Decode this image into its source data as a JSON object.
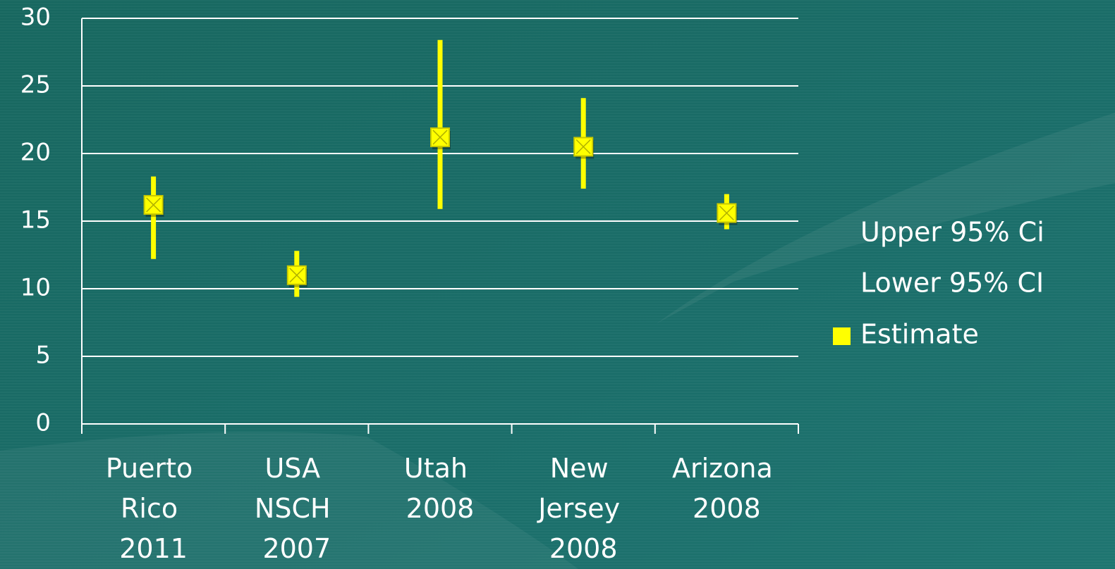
{
  "chart_data": {
    "type": "stock",
    "categories": [
      "Puerto Rico 2011",
      "USA NSCH 2007",
      "Utah 2008",
      "New Jersey 2008",
      "Arizona 2008"
    ],
    "series": [
      {
        "name": "Upper 95% Ci",
        "color": "#ffff00",
        "values": [
          18.3,
          12.8,
          28.4,
          24.1,
          17.0
        ]
      },
      {
        "name": "Lower 95% CI",
        "color": "#ffff00",
        "values": [
          12.2,
          9.4,
          15.9,
          17.4,
          14.4
        ]
      },
      {
        "name": "Estimate",
        "color": "#ffff00",
        "values": [
          16.2,
          11.0,
          21.2,
          20.5,
          15.6
        ]
      }
    ],
    "ylim": [
      0,
      30
    ],
    "yticks": [
      0,
      5,
      10,
      15,
      20,
      25,
      30
    ],
    "grid": true,
    "legend": "right"
  }
}
